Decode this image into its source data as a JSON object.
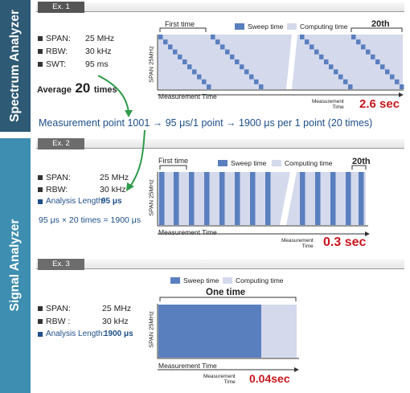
{
  "sidebar": {
    "top_label": "Spectrum Analyzer",
    "bottom_label": "Signal Analyzer"
  },
  "ex1": {
    "tab": "Ex. 1",
    "specs": [
      {
        "label": "SPAN:",
        "value": "25 MHz"
      },
      {
        "label": "RBW:",
        "value": "30 kHz"
      },
      {
        "label": "SWT:",
        "value": "95 ms"
      }
    ],
    "average_prefix": "Average",
    "average_count": "20",
    "average_suffix": "times",
    "first_time": "First time",
    "last_time": "20th",
    "legend_sweep": "Sweep time",
    "legend_computing": "Computing  time",
    "y_axis": "SPAN 25MHz",
    "x_axis": "Measurement Time",
    "mtime_line1": "Measurement",
    "mtime_line2": "Time",
    "result": "2.6 sec"
  },
  "formula": "Measurement point 1001 → 95 μs/1 point → 1900 μs per 1 point (20 times)",
  "ex2": {
    "tab": "Ex. 2",
    "specs": [
      {
        "label": "SPAN:",
        "value": "25 MHz"
      },
      {
        "label": "RBW:",
        "value": "30 kHz"
      },
      {
        "label": "Analysis Length:",
        "value": "95 μs"
      }
    ],
    "calc": "95 μs × 20 times = 1900 μs",
    "first_time": "First time",
    "last_time": "20th",
    "legend_sweep": "Sweep time",
    "legend_computing": "Computing  time",
    "y_axis": "SPAN 25MHz",
    "x_axis": "Measurement Time",
    "mtime_line1": "Measurement",
    "mtime_line2": "Time",
    "result": "0.3 sec"
  },
  "ex3": {
    "tab": "Ex. 3",
    "specs": [
      {
        "label": "SPAN:",
        "value": "25 MHz"
      },
      {
        "label": "RBW :",
        "value": "30 kHz"
      },
      {
        "label": "Analysis Length:",
        "value": "1900 μs"
      }
    ],
    "legend_sweep": "Sweep time",
    "legend_computing": "Computing  time",
    "one_time": "One time",
    "y_axis": "SPAN 25MHz",
    "x_axis": "Measurement Time",
    "mtime_line1": "Measurement",
    "mtime_line2": "Time",
    "result": "0.04sec"
  },
  "colors": {
    "sweep": "#5a7fbf",
    "computing": "#d4d9ec",
    "result_red": "#c8171d",
    "arrow_green": "#2e9a4a",
    "formula_blue": "#1e4f8a"
  }
}
